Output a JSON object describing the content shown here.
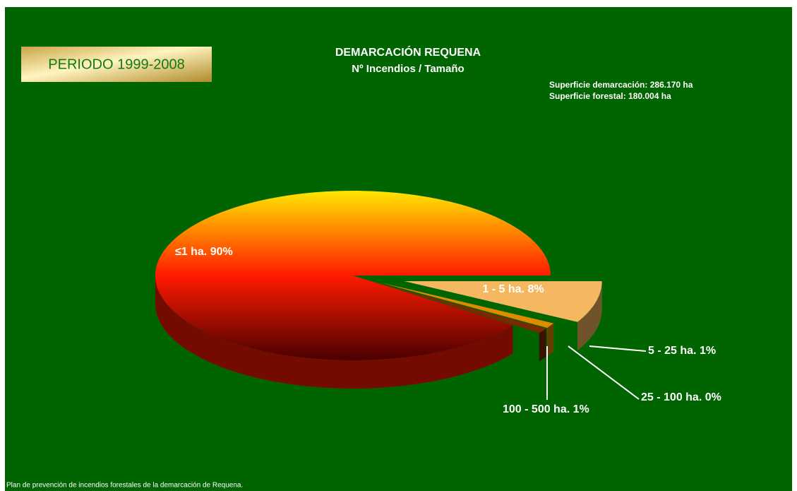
{
  "chart_data": {
    "type": "pie3d",
    "title": "DEMARCACIÓN  REQUENA",
    "subtitle": "Nº Incendios / Tamaño",
    "badge": "PERIODO 1999-2008",
    "annotations": [
      "Superficie demarcación:  286.170  ha",
      "Superficie forestal:  180.004  ha"
    ],
    "footer": "Plan de prevención de incendios forestales de la demarcación de Requena.",
    "categories": [
      "≤1 ha.",
      "1 - 5 ha.",
      "5 - 25 ha.",
      "25 - 100 ha.",
      "100 - 500 ha."
    ],
    "values": [
      90,
      8,
      1,
      0,
      1
    ],
    "value_labels": [
      "90%",
      "8%",
      "1%",
      "0%",
      "1%"
    ],
    "colors": [
      "#ff1a00",
      "#f5b860",
      "#e08a00",
      "#ff7a00",
      "#7a2a00"
    ]
  }
}
